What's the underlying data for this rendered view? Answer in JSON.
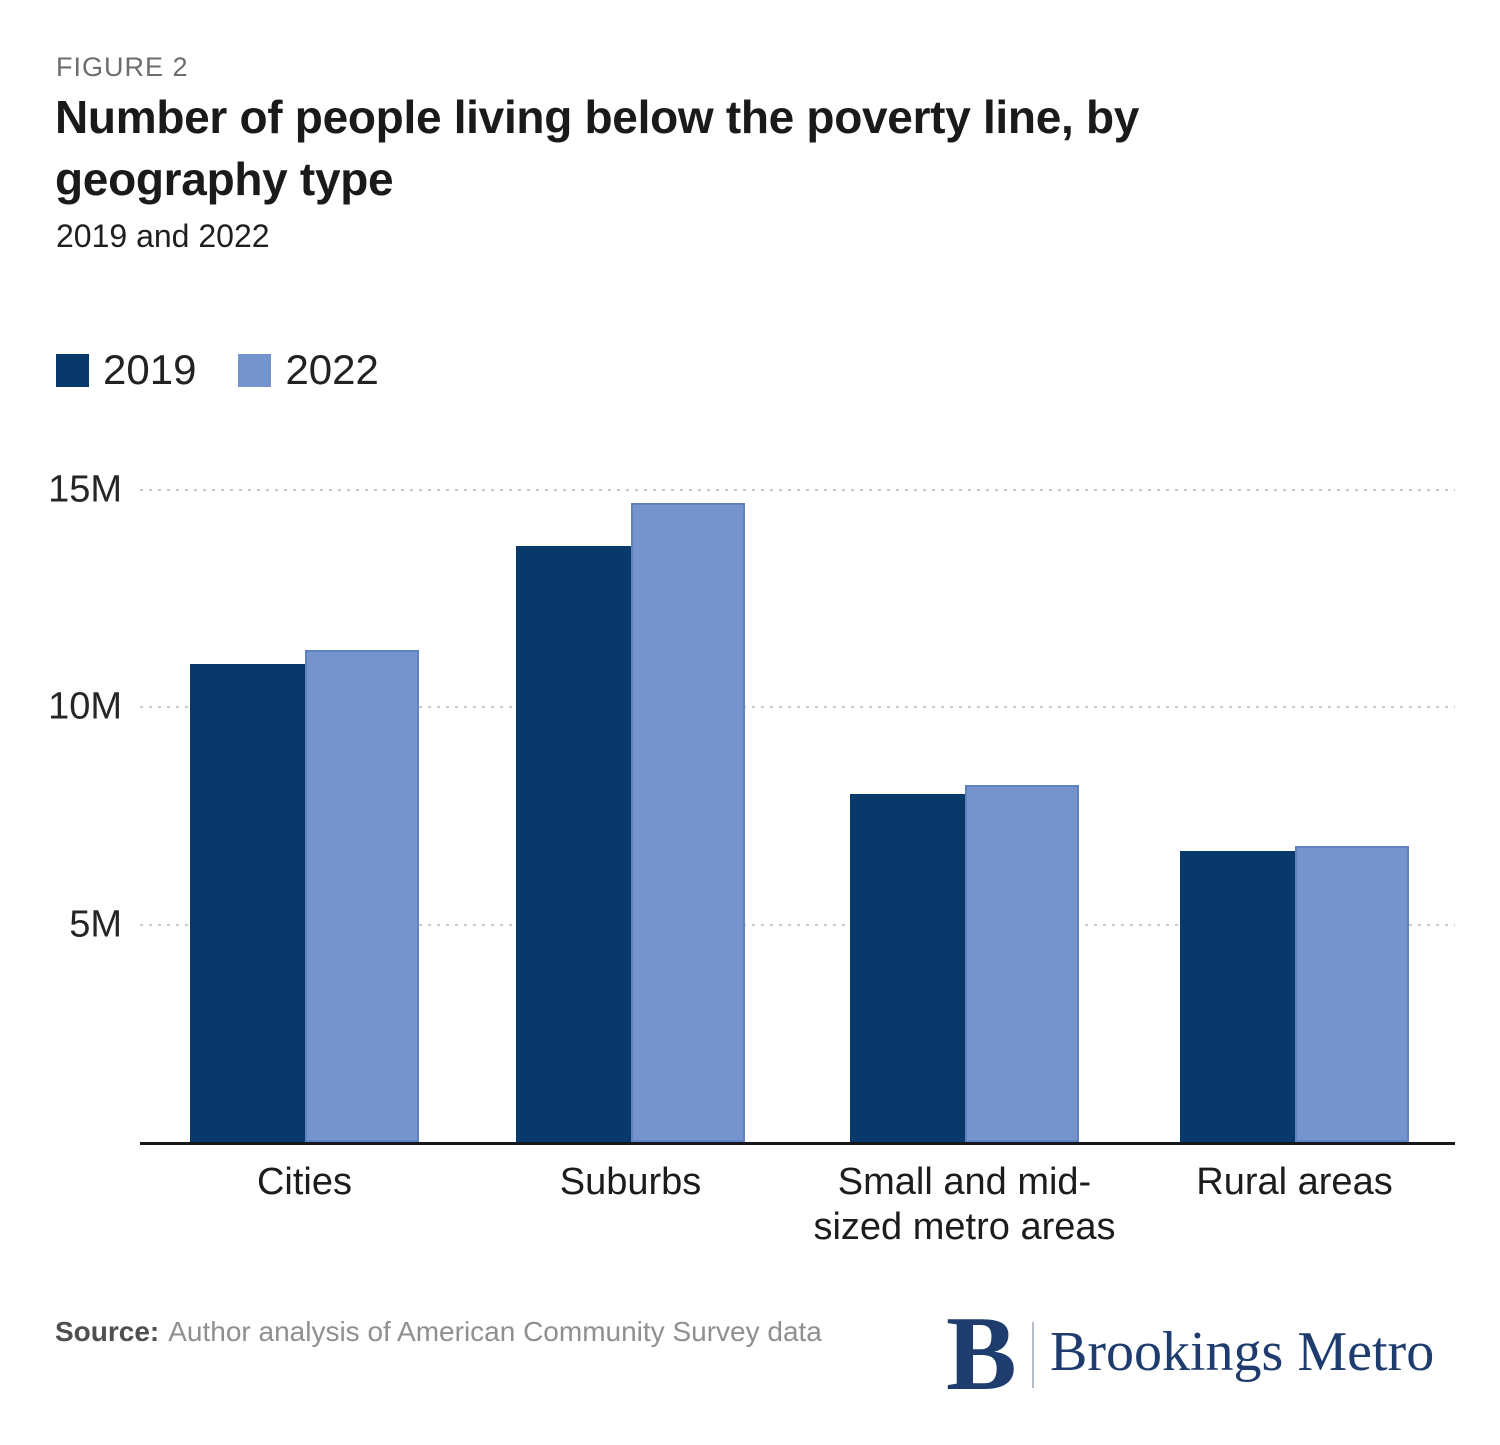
{
  "figure": {
    "label": "FIGURE 2",
    "title": "Number of people living below the poverty line, by geography type",
    "subtitle": "2019 and 2022"
  },
  "legend": {
    "items": [
      {
        "label": "2019",
        "color": "#08396a"
      },
      {
        "label": "2022",
        "color": "#7594ce"
      }
    ]
  },
  "chart_data": {
    "type": "bar",
    "title": "Number of people living below the poverty line, by geography type",
    "subtitle": "2019 and 2022",
    "categories": [
      "Cities",
      "Suburbs",
      "Small and mid-sized metro areas",
      "Rural areas"
    ],
    "series": [
      {
        "name": "2019",
        "color": "#08396a",
        "values": [
          11.0,
          13.7,
          8.0,
          6.7
        ]
      },
      {
        "name": "2022",
        "color": "#7594ce",
        "values": [
          11.3,
          14.7,
          8.2,
          6.8
        ]
      }
    ],
    "unit": "millions of people",
    "xlabel": "",
    "ylabel": "",
    "ylim": [
      0,
      16.1
    ],
    "yticks": [
      {
        "value": 5,
        "label": "5M"
      },
      {
        "value": 10,
        "label": "10M"
      },
      {
        "value": 15,
        "label": "15M"
      }
    ],
    "grid": "horizontal-dotted",
    "legend_position": "top-left"
  },
  "source": {
    "prefix": "Source:",
    "text": "Author analysis of American Community Survey data"
  },
  "logo": {
    "monogram": "B",
    "name": "Brookings Metro",
    "color": "#1e3c6e"
  }
}
